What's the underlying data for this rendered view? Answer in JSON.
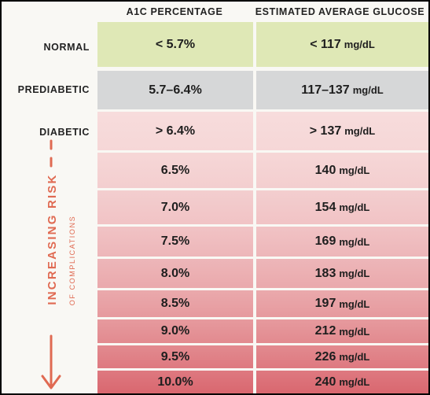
{
  "headers": {
    "a1c": "A1C PERCENTAGE",
    "glucose": "ESTIMATED AVERAGE GLUCOSE"
  },
  "side_labels": {
    "risk": "INCREASING RISK",
    "complications": "OF COMPLICATIONS"
  },
  "rows": [
    {
      "label": "NORMAL",
      "a1c": "< 5.7%",
      "glucose": "< 117",
      "unit": "mg/dL"
    },
    {
      "label": "PREDIABETIC",
      "a1c": "5.7–6.4%",
      "glucose": "117–137",
      "unit": "mg/dL"
    },
    {
      "label": "DIABETIC",
      "a1c": "> 6.4%",
      "glucose": "> 137",
      "unit": "mg/dL"
    },
    {
      "label": "",
      "a1c": "6.5%",
      "glucose": "140",
      "unit": "mg/dL"
    },
    {
      "label": "",
      "a1c": "7.0%",
      "glucose": "154",
      "unit": "mg/dL"
    },
    {
      "label": "",
      "a1c": "7.5%",
      "glucose": "169",
      "unit": "mg/dL"
    },
    {
      "label": "",
      "a1c": "8.0%",
      "glucose": "183",
      "unit": "mg/dL"
    },
    {
      "label": "",
      "a1c": "8.5%",
      "glucose": "197",
      "unit": "mg/dL"
    },
    {
      "label": "",
      "a1c": "9.0%",
      "glucose": "212",
      "unit": "mg/dL"
    },
    {
      "label": "",
      "a1c": "9.5%",
      "glucose": "226",
      "unit": "mg/dL"
    },
    {
      "label": "",
      "a1c": "10.0%",
      "glucose": "240",
      "unit": "mg/dL"
    }
  ],
  "colors": {
    "normal": "#dfe8b6",
    "prediabetic": "#d6d7d8",
    "risk_start": "#f7dcdc",
    "risk_end": "#d9676f",
    "accent": "#e06a52"
  }
}
